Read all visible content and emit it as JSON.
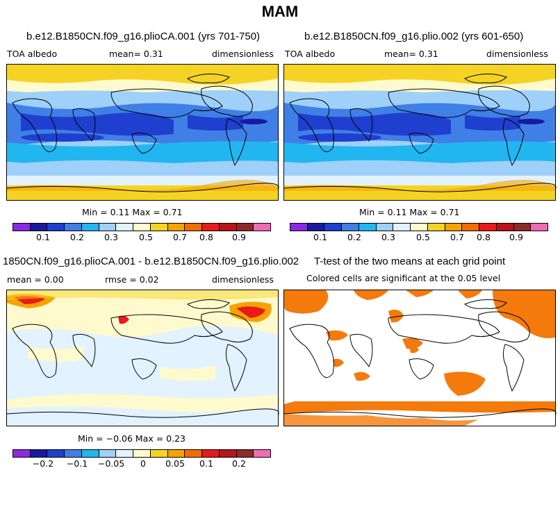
{
  "title": "MAM",
  "colors": {
    "albedo_scale": [
      "#8a2be2",
      "#1a1aa0",
      "#1f3fcf",
      "#3f7fe6",
      "#22b6f0",
      "#9fd0fa",
      "#e2f2ff",
      "#fffacd",
      "#f5d325",
      "#f5a300",
      "#f06d00",
      "#e81a1a",
      "#b8141a",
      "#8e2a2a",
      "#f06cb4"
    ],
    "diff_scale": [
      "#8a2be2",
      "#1a1aa0",
      "#1f3fcf",
      "#3f7fe6",
      "#22b6f0",
      "#9fd0fa",
      "#e2f2ff",
      "#fffacd",
      "#f5d325",
      "#f5a300",
      "#f06d00",
      "#e81a1a",
      "#b8141a",
      "#8e2a2a",
      "#f06cb4"
    ],
    "significant": "#f47a0c"
  },
  "panels": {
    "a": {
      "title": "b.e12.B1850CN.f09_g16.plioCA.001 (yrs 701-750)",
      "left": "TOA albedo",
      "mean": "mean=    0.31",
      "units": "dimensionless",
      "minmax": "Min =    0.11 Max =    0.71",
      "ticks": [
        "0.1",
        "0.2",
        "0.3",
        "0.5",
        "0.7",
        "0.8",
        "0.9"
      ]
    },
    "b": {
      "title": "b.e12.B1850CN.f09_g16.plio.002 (yrs 601-650)",
      "left": "TOA albedo",
      "mean": "mean=    0.31",
      "units": "dimensionless",
      "minmax": "Min =    0.11 Max =    0.71",
      "ticks": [
        "0.1",
        "0.2",
        "0.3",
        "0.5",
        "0.7",
        "0.8",
        "0.9"
      ]
    },
    "c": {
      "title": "1850CN.f09_g16.plioCA.001 - b.e12.B1850CN.f09_g16.plio.002",
      "left": "mean =    0.00",
      "mean": "rmse =    0.02",
      "units": "dimensionless",
      "minmax": "Min =  −0.06 Max =    0.23",
      "ticks": [
        "−0.2",
        "−0.1",
        "−0.05",
        "0",
        "0.05",
        "0.1",
        "0.2"
      ]
    },
    "d": {
      "title": "T-test of the two means at each grid point",
      "subtitle": "Colored cells are significant at the 0.05 level"
    }
  }
}
